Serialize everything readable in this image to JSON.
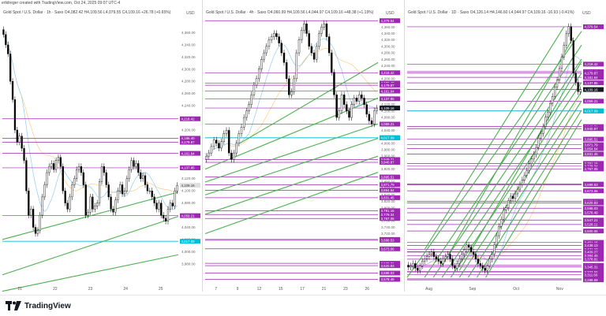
{
  "credit": "erlidreger created with TradingView.com, Oct 24, 2025 09:07 UTC-4",
  "footer": {
    "brand": "TradingView"
  },
  "colors": {
    "level": "#9c27b0",
    "trend": "#4caf50",
    "cyan": "#00bcd4",
    "ma_blue": "#90caf9",
    "ma_orange": "#ffcc80",
    "price_tag": "#131722"
  },
  "chart_data": [
    {
      "type": "candlestick",
      "title": "Gold Spot / U.S. Dollar · 1h · Saxo  O4,082.42  H4,109.56  L4,079.55  C4,109.16  +26.78 (+0.65%)",
      "ylabel": "USD",
      "x_ticks": [
        "21",
        "22",
        "23",
        "24",
        "25"
      ],
      "ylim": [
        3950,
        4380
      ],
      "y_ticks": [
        3980,
        4000,
        4020,
        4040,
        4060,
        4080,
        4100,
        4120,
        4140,
        4160,
        4180,
        4200,
        4220,
        4240,
        4260,
        4280,
        4300,
        4320,
        4340,
        4360
      ],
      "levels": [
        4218.42,
        4186.4,
        4179.87,
        4161.64,
        4137.85,
        4059.21
      ],
      "cyan_level": 4017.09,
      "price": 4109.16,
      "closes": [
        4357,
        4340,
        4325,
        4280,
        4250,
        4200,
        4180,
        4190,
        4170,
        4150,
        4100,
        4060,
        4070,
        4040,
        4030,
        4035,
        4060,
        4090,
        4110,
        4130,
        4140,
        4145,
        4135,
        4150,
        4155,
        4140,
        4100,
        4080,
        4070,
        4090,
        4110,
        4120,
        4135,
        4140,
        4130,
        4110,
        4060,
        4065,
        4090,
        4070,
        4075,
        4080,
        4115,
        4140,
        4130,
        4110,
        4090,
        4070,
        4065,
        4085,
        4100,
        4110,
        4095,
        4100,
        4120,
        4135,
        4150,
        4140,
        4145,
        4130,
        4120,
        4125,
        4110,
        4100,
        4100,
        4090,
        4080,
        4070,
        4080,
        4060,
        4055,
        4050,
        4070,
        4080,
        4075,
        4100,
        4109
      ]
    },
    {
      "type": "candlestick",
      "title": "Gold Spot / U.S. Dollar · 4h · Saxo  O4,060.99  H4,109.56  L4,044.97  C4,109.16  +48.38 (+1.19%)",
      "ylabel": "USD",
      "x_ticks": [
        "7",
        "9",
        "12",
        "15",
        "17",
        "21",
        "23",
        "26"
      ],
      "ylim": [
        3570,
        4390
      ],
      "y_ticks": [
        3720,
        3740,
        3760,
        3780,
        3800,
        3820,
        3840,
        3860,
        3880,
        3900,
        3920,
        3940,
        3960,
        3980,
        4000,
        4020,
        4040,
        4060,
        4080,
        4100,
        4120,
        4140,
        4160,
        4180,
        4200,
        4220,
        4240,
        4260,
        4280,
        4300,
        4320,
        4340,
        4360,
        4380
      ],
      "levels": [
        4379.54,
        4218.42,
        4186.4,
        4179.87,
        4161.64,
        4137.85,
        4109.16,
        4059.21,
        4017.09,
        3949.71,
        3940.87,
        3895.51,
        3871.79,
        3854.64,
        3831.45,
        3791.16,
        3779.34,
        3767.05,
        3702.02,
        3699.53,
        3673.06,
        3628.31,
        3620.93,
        3598.03,
        3578.49
      ],
      "cyan_level": 4017.09,
      "price": 4109.16,
      "closes": [
        3960,
        3970,
        3990,
        4010,
        4000,
        3985,
        4005,
        4030,
        4040,
        3970,
        3950,
        3970,
        4000,
        4030,
        4050,
        4080,
        4100,
        4120,
        4150,
        4180,
        4200,
        4230,
        4260,
        4280,
        4300,
        4320,
        4330,
        4340,
        4330,
        4310,
        4280,
        4250,
        4200,
        4150,
        4160,
        4200,
        4280,
        4320,
        4350,
        4370,
        4340,
        4300,
        4280,
        4260,
        4300,
        4340,
        4360,
        4370,
        4330,
        4280,
        4220,
        4150,
        4080,
        4100,
        4150,
        4120,
        4100,
        4080,
        4120,
        4140,
        4130,
        4150,
        4140,
        4120,
        4090,
        4070,
        4060,
        4100,
        4109
      ]
    },
    {
      "type": "candlestick",
      "title": "Gold Spot / U.S. Dollar · 1D · Saxo  O4,126.14  H4,146.60  L4,044.97  C4,109.16  -16.93 (-0.41%)",
      "ylabel": "USD",
      "x_ticks": [
        "Aug",
        "Sep",
        "Oct",
        "Nov"
      ],
      "ylim": [
        3280,
        4420
      ],
      "levels": [
        4379.54,
        4218.42,
        4186.4,
        4179.87,
        4161.64,
        4137.85,
        4109.16,
        4059.21,
        4017.09,
        3949.71,
        3940.87,
        3895.51,
        3871.79,
        3854.64,
        3831.45,
        3791.16,
        3779.34,
        3767.05,
        3702.02,
        3699.53,
        3673.06,
        3628.31,
        3620.93,
        3598.03,
        3578.49,
        3547.21,
        3528.11,
        3500.05,
        3451.15,
        3438.13,
        3421.1,
        3410.5,
        3409.27,
        3394.45,
        3378.91,
        3352.18,
        3345.31,
        3326.38,
        3323.55,
        3311.6,
        3293.99,
        3289.69
      ],
      "cyan_level": 4017.09,
      "price": 4109.16,
      "closes": [
        3345,
        3350,
        3360,
        3340,
        3330,
        3350,
        3370,
        3380,
        3390,
        3400,
        3410,
        3390,
        3380,
        3370,
        3360,
        3380,
        3390,
        3400,
        3380,
        3350,
        3340,
        3360,
        3380,
        3400,
        3420,
        3440,
        3430,
        3410,
        3400,
        3380,
        3360,
        3350,
        3340,
        3330,
        3350,
        3380,
        3400,
        3440,
        3480,
        3520,
        3550,
        3590,
        3600,
        3630,
        3650,
        3640,
        3660,
        3680,
        3700,
        3720,
        3740,
        3760,
        3790,
        3810,
        3830,
        3860,
        3900,
        3920,
        3950,
        3990,
        4010,
        4050,
        4080,
        4120,
        4150,
        4200,
        4250,
        4300,
        4350,
        4380,
        4320,
        4180,
        4140,
        4100,
        4109
      ]
    }
  ]
}
